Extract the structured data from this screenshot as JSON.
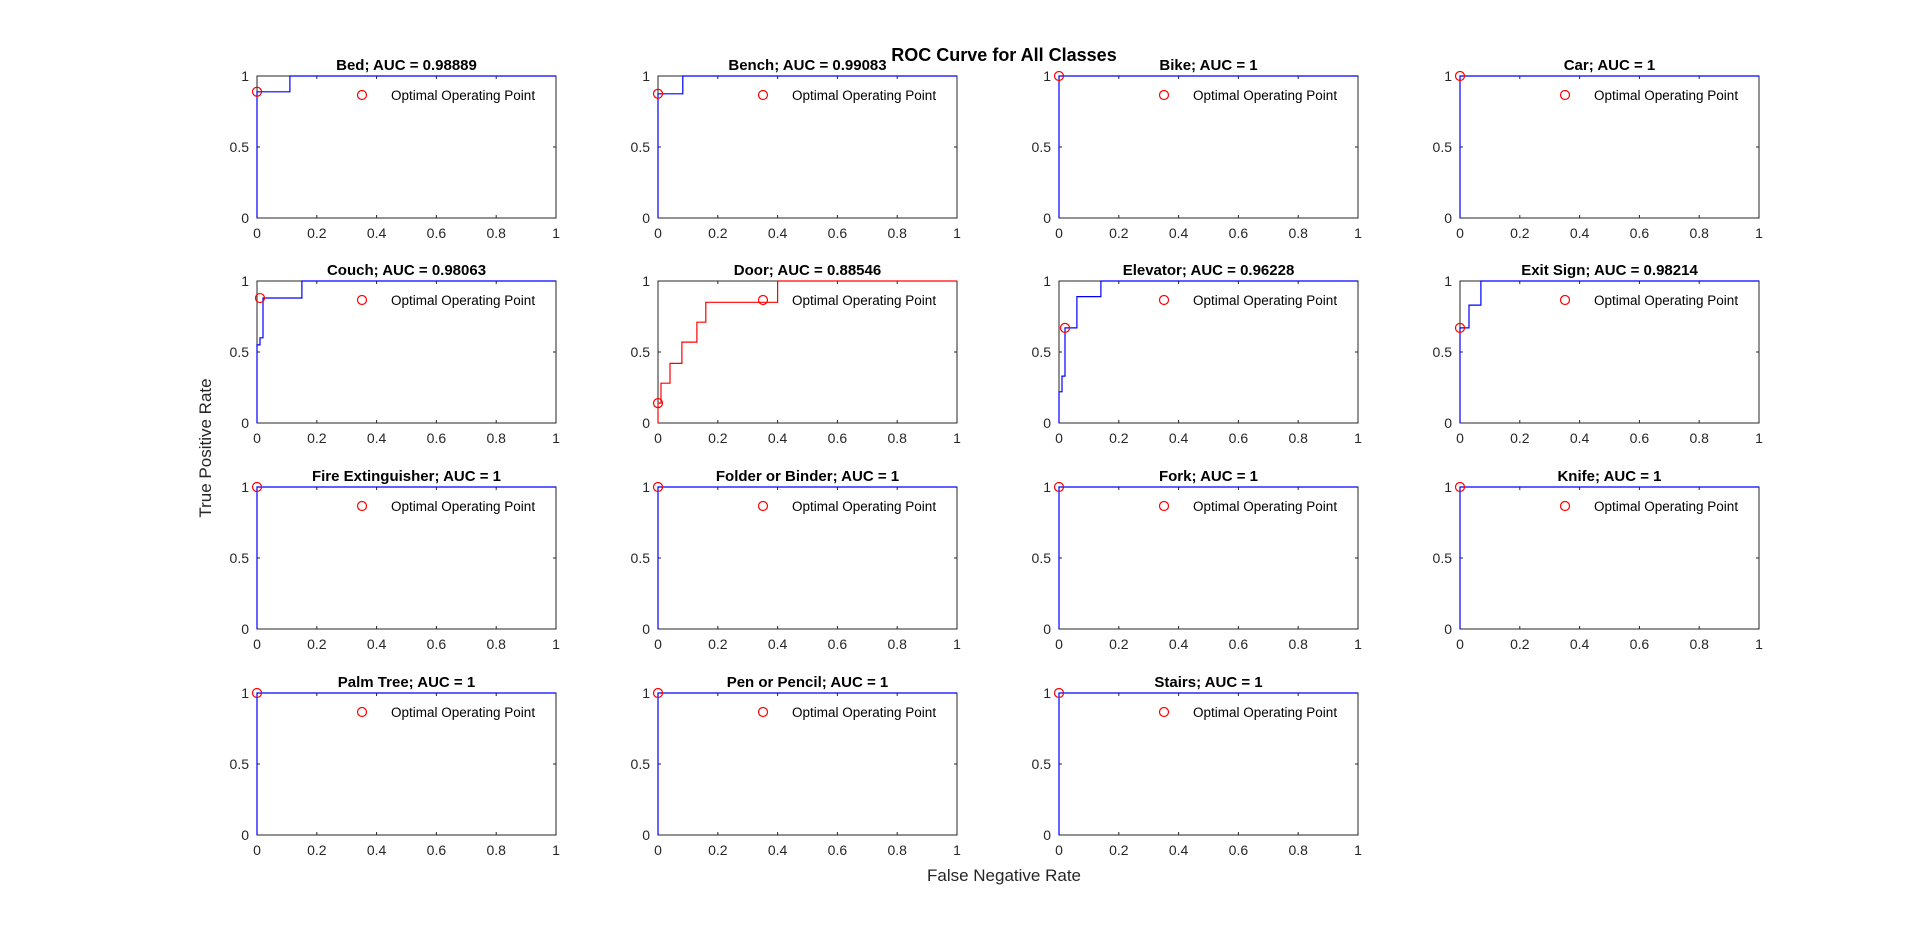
{
  "figure": {
    "suptitle": "ROC Curve for All Classes",
    "xlabel": "False Negative Rate",
    "ylabel": "True Positive Rate",
    "legend_label": "Optimal Operating Point",
    "colors": {
      "roc_line": "#0000ff",
      "door_line": "#ff0000",
      "marker": "#ff0000",
      "axes": "#262626"
    }
  },
  "chart_data": [
    {
      "type": "line",
      "title": "Bed; AUC = 0.98889",
      "xlim": [
        0,
        1
      ],
      "ylim": [
        0,
        1
      ],
      "xticks": [
        "0",
        "0.2",
        "0.4",
        "0.6",
        "0.8",
        "1"
      ],
      "yticks": [
        "0",
        "0.5",
        "1"
      ],
      "series": [
        {
          "x": [
            0,
            0,
            0.11,
            0.11,
            1
          ],
          "y": [
            0,
            0.889,
            0.889,
            1,
            1
          ],
          "color": "#0000ff"
        }
      ],
      "optimal_point": [
        0,
        0.889
      ]
    },
    {
      "type": "line",
      "title": "Bench; AUC = 0.99083",
      "xlim": [
        0,
        1
      ],
      "ylim": [
        0,
        1
      ],
      "xticks": [
        "0",
        "0.2",
        "0.4",
        "0.6",
        "0.8",
        "1"
      ],
      "yticks": [
        "0",
        "0.5",
        "1"
      ],
      "series": [
        {
          "x": [
            0,
            0,
            0.083,
            0.083,
            1
          ],
          "y": [
            0,
            0.875,
            0.875,
            1,
            1
          ],
          "color": "#0000ff"
        }
      ],
      "optimal_point": [
        0,
        0.875
      ]
    },
    {
      "type": "line",
      "title": "Bike; AUC = 1",
      "xlim": [
        0,
        1
      ],
      "ylim": [
        0,
        1
      ],
      "xticks": [
        "0",
        "0.2",
        "0.4",
        "0.6",
        "0.8",
        "1"
      ],
      "yticks": [
        "0",
        "0.5",
        "1"
      ],
      "series": [
        {
          "x": [
            0,
            0,
            1
          ],
          "y": [
            0,
            1,
            1
          ],
          "color": "#0000ff"
        }
      ],
      "optimal_point": [
        0,
        1
      ]
    },
    {
      "type": "line",
      "title": "Car; AUC = 1",
      "xlim": [
        0,
        1
      ],
      "ylim": [
        0,
        1
      ],
      "xticks": [
        "0",
        "0.2",
        "0.4",
        "0.6",
        "0.8",
        "1"
      ],
      "yticks": [
        "0",
        "0.5",
        "1"
      ],
      "series": [
        {
          "x": [
            0,
            0,
            1
          ],
          "y": [
            0,
            1,
            1
          ],
          "color": "#0000ff"
        }
      ],
      "optimal_point": [
        0,
        1
      ]
    },
    {
      "type": "line",
      "title": "Couch; AUC = 0.98063",
      "xlim": [
        0,
        1
      ],
      "ylim": [
        0,
        1
      ],
      "xticks": [
        "0",
        "0.2",
        "0.4",
        "0.6",
        "0.8",
        "1"
      ],
      "yticks": [
        "0",
        "0.5",
        "1"
      ],
      "series": [
        {
          "x": [
            0,
            0,
            0.01,
            0.01,
            0.02,
            0.02,
            0.15,
            0.15,
            1
          ],
          "y": [
            0,
            0.55,
            0.55,
            0.6,
            0.6,
            0.88,
            0.88,
            1,
            1
          ],
          "color": "#0000ff"
        }
      ],
      "optimal_point": [
        0.01,
        0.88
      ]
    },
    {
      "type": "line",
      "title": "Door; AUC = 0.88546",
      "xlim": [
        0,
        1
      ],
      "ylim": [
        0,
        1
      ],
      "xticks": [
        "0",
        "0.2",
        "0.4",
        "0.6",
        "0.8",
        "1"
      ],
      "yticks": [
        "0",
        "0.5",
        "1"
      ],
      "series": [
        {
          "x": [
            0,
            0,
            0.01,
            0.01,
            0.04,
            0.04,
            0.08,
            0.08,
            0.13,
            0.13,
            0.16,
            0.16,
            0.4,
            0.4,
            1
          ],
          "y": [
            0,
            0.14,
            0.14,
            0.28,
            0.28,
            0.42,
            0.42,
            0.57,
            0.57,
            0.71,
            0.71,
            0.85,
            0.85,
            1,
            1
          ],
          "color": "#ff0000"
        }
      ],
      "optimal_point": [
        0,
        0.14
      ]
    },
    {
      "type": "line",
      "title": "Elevator; AUC = 0.96228",
      "xlim": [
        0,
        1
      ],
      "ylim": [
        0,
        1
      ],
      "xticks": [
        "0",
        "0.2",
        "0.4",
        "0.6",
        "0.8",
        "1"
      ],
      "yticks": [
        "0",
        "0.5",
        "1"
      ],
      "series": [
        {
          "x": [
            0,
            0,
            0.01,
            0.01,
            0.02,
            0.02,
            0.04,
            0.04,
            0.06,
            0.06,
            0.14,
            0.14,
            1
          ],
          "y": [
            0,
            0.22,
            0.22,
            0.33,
            0.33,
            0.67,
            0.67,
            0.67,
            0.67,
            0.89,
            0.89,
            1,
            1
          ],
          "color": "#0000ff"
        }
      ],
      "optimal_point": [
        0.02,
        0.67
      ]
    },
    {
      "type": "line",
      "title": "Exit Sign; AUC = 0.98214",
      "xlim": [
        0,
        1
      ],
      "ylim": [
        0,
        1
      ],
      "xticks": [
        "0",
        "0.2",
        "0.4",
        "0.6",
        "0.8",
        "1"
      ],
      "yticks": [
        "0",
        "0.5",
        "1"
      ],
      "series": [
        {
          "x": [
            0,
            0,
            0.03,
            0.03,
            0.07,
            0.07,
            1
          ],
          "y": [
            0,
            0.67,
            0.67,
            0.83,
            0.83,
            1,
            1
          ],
          "color": "#0000ff"
        }
      ],
      "optimal_point": [
        0,
        0.67
      ]
    },
    {
      "type": "line",
      "title": "Fire Extinguisher; AUC = 1",
      "xlim": [
        0,
        1
      ],
      "ylim": [
        0,
        1
      ],
      "xticks": [
        "0",
        "0.2",
        "0.4",
        "0.6",
        "0.8",
        "1"
      ],
      "yticks": [
        "0",
        "0.5",
        "1"
      ],
      "series": [
        {
          "x": [
            0,
            0,
            1
          ],
          "y": [
            0,
            1,
            1
          ],
          "color": "#0000ff"
        }
      ],
      "optimal_point": [
        0,
        1
      ]
    },
    {
      "type": "line",
      "title": "Folder or Binder; AUC = 1",
      "xlim": [
        0,
        1
      ],
      "ylim": [
        0,
        1
      ],
      "xticks": [
        "0",
        "0.2",
        "0.4",
        "0.6",
        "0.8",
        "1"
      ],
      "yticks": [
        "0",
        "0.5",
        "1"
      ],
      "series": [
        {
          "x": [
            0,
            0,
            1
          ],
          "y": [
            0,
            1,
            1
          ],
          "color": "#0000ff"
        }
      ],
      "optimal_point": [
        0,
        1
      ]
    },
    {
      "type": "line",
      "title": "Fork; AUC = 1",
      "xlim": [
        0,
        1
      ],
      "ylim": [
        0,
        1
      ],
      "xticks": [
        "0",
        "0.2",
        "0.4",
        "0.6",
        "0.8",
        "1"
      ],
      "yticks": [
        "0",
        "0.5",
        "1"
      ],
      "series": [
        {
          "x": [
            0,
            0,
            1
          ],
          "y": [
            0,
            1,
            1
          ],
          "color": "#0000ff"
        }
      ],
      "optimal_point": [
        0,
        1
      ]
    },
    {
      "type": "line",
      "title": "Knife; AUC = 1",
      "xlim": [
        0,
        1
      ],
      "ylim": [
        0,
        1
      ],
      "xticks": [
        "0",
        "0.2",
        "0.4",
        "0.6",
        "0.8",
        "1"
      ],
      "yticks": [
        "0",
        "0.5",
        "1"
      ],
      "series": [
        {
          "x": [
            0,
            0,
            1
          ],
          "y": [
            0,
            1,
            1
          ],
          "color": "#0000ff"
        }
      ],
      "optimal_point": [
        0,
        1
      ]
    },
    {
      "type": "line",
      "title": "Palm Tree; AUC = 1",
      "xlim": [
        0,
        1
      ],
      "ylim": [
        0,
        1
      ],
      "xticks": [
        "0",
        "0.2",
        "0.4",
        "0.6",
        "0.8",
        "1"
      ],
      "yticks": [
        "0",
        "0.5",
        "1"
      ],
      "series": [
        {
          "x": [
            0,
            0,
            1
          ],
          "y": [
            0,
            1,
            1
          ],
          "color": "#0000ff"
        }
      ],
      "optimal_point": [
        0,
        1
      ]
    },
    {
      "type": "line",
      "title": "Pen or Pencil; AUC = 1",
      "xlim": [
        0,
        1
      ],
      "ylim": [
        0,
        1
      ],
      "xticks": [
        "0",
        "0.2",
        "0.4",
        "0.6",
        "0.8",
        "1"
      ],
      "yticks": [
        "0",
        "0.5",
        "1"
      ],
      "series": [
        {
          "x": [
            0,
            0,
            1
          ],
          "y": [
            0,
            1,
            1
          ],
          "color": "#0000ff"
        }
      ],
      "optimal_point": [
        0,
        1
      ]
    },
    {
      "type": "line",
      "title": "Stairs; AUC = 1",
      "xlim": [
        0,
        1
      ],
      "ylim": [
        0,
        1
      ],
      "xticks": [
        "0",
        "0.2",
        "0.4",
        "0.6",
        "0.8",
        "1"
      ],
      "yticks": [
        "0",
        "0.5",
        "1"
      ],
      "series": [
        {
          "x": [
            0,
            0,
            1
          ],
          "y": [
            0,
            1,
            1
          ],
          "color": "#0000ff"
        }
      ],
      "optimal_point": [
        0,
        1
      ]
    }
  ]
}
